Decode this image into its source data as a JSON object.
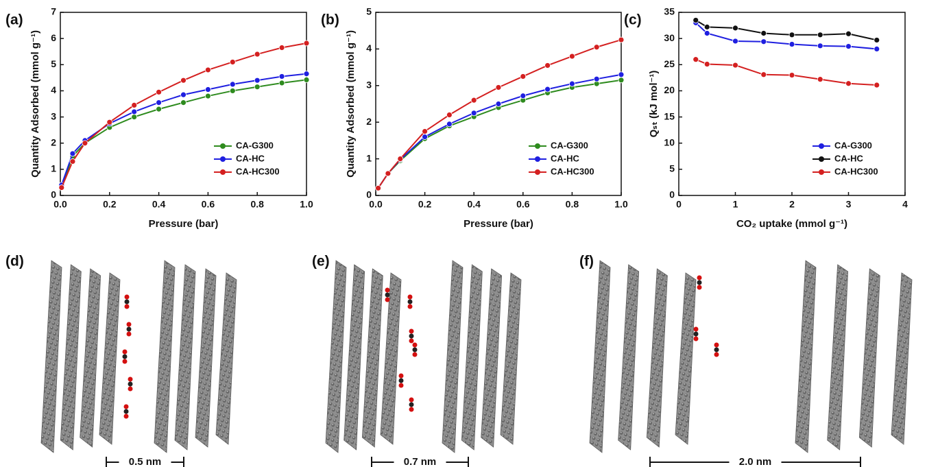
{
  "chart_data": [
    {
      "type": "line",
      "panel_label": "(a)",
      "x_label": "Pressure (bar)",
      "y_label": "Quantity Adsorbed (mmol g⁻¹)",
      "x": [
        0.005,
        0.05,
        0.1,
        0.2,
        0.3,
        0.4,
        0.5,
        0.6,
        0.7,
        0.8,
        0.9,
        1.0
      ],
      "xlim": [
        0,
        1
      ],
      "xticks": [
        {
          "value": 0,
          "label": "0.0"
        },
        0.2,
        0.4,
        0.6,
        0.8,
        {
          "value": 1,
          "label": "1.0"
        }
      ],
      "ylim": [
        0,
        7
      ],
      "yticks": [
        0,
        1,
        2,
        3,
        4,
        5,
        6,
        7
      ],
      "legend": "lower right",
      "series": [
        {
          "name": "CA-G300",
          "color": "#2e8b1e",
          "values": [
            0.3,
            1.5,
            2.0,
            2.6,
            3.0,
            3.3,
            3.55,
            3.8,
            4.0,
            4.15,
            4.3,
            4.42
          ]
        },
        {
          "name": "CA-HC",
          "color": "#1f1fe0",
          "values": [
            0.4,
            1.6,
            2.1,
            2.75,
            3.2,
            3.55,
            3.85,
            4.05,
            4.25,
            4.4,
            4.55,
            4.65
          ]
        },
        {
          "name": "CA-HC300",
          "color": "#d42020",
          "values": [
            0.3,
            1.3,
            2.0,
            2.8,
            3.45,
            3.95,
            4.4,
            4.8,
            5.1,
            5.4,
            5.65,
            5.82
          ]
        }
      ]
    },
    {
      "type": "line",
      "panel_label": "(b)",
      "x_label": "Pressure (bar)",
      "y_label": "Quantity Adsorbed (mmol g⁻¹)",
      "x": [
        0.01,
        0.05,
        0.1,
        0.2,
        0.3,
        0.4,
        0.5,
        0.6,
        0.7,
        0.8,
        0.9,
        1.0
      ],
      "xlim": [
        0,
        1
      ],
      "xticks": [
        {
          "value": 0,
          "label": "0.0"
        },
        0.2,
        0.4,
        0.6,
        0.8,
        {
          "value": 1,
          "label": "1.0"
        }
      ],
      "ylim": [
        0,
        5
      ],
      "yticks": [
        0,
        1,
        2,
        3,
        4,
        5
      ],
      "legend": "lower right",
      "series": [
        {
          "name": "CA-G300",
          "color": "#2e8b1e",
          "values": [
            0.2,
            0.6,
            0.95,
            1.55,
            1.9,
            2.15,
            2.4,
            2.6,
            2.8,
            2.95,
            3.05,
            3.15
          ]
        },
        {
          "name": "CA-HC",
          "color": "#1f1fe0",
          "values": [
            0.2,
            0.6,
            0.98,
            1.6,
            1.95,
            2.25,
            2.5,
            2.72,
            2.9,
            3.05,
            3.18,
            3.3
          ]
        },
        {
          "name": "CA-HC300",
          "color": "#d42020",
          "values": [
            0.2,
            0.6,
            1.0,
            1.75,
            2.2,
            2.6,
            2.95,
            3.25,
            3.55,
            3.8,
            4.05,
            4.25
          ]
        }
      ]
    },
    {
      "type": "line",
      "panel_label": "(c)",
      "x_label": "CO₂ uptake (mmol g⁻¹)",
      "y_label": "Qₛₜ (kJ mol⁻¹)",
      "x": [
        0.3,
        0.5,
        1,
        1.5,
        2,
        2.5,
        3,
        3.5
      ],
      "xlim": [
        0,
        4
      ],
      "xticks": [
        0,
        1,
        2,
        3,
        4
      ],
      "ylim": [
        0,
        35
      ],
      "yticks": [
        0,
        5,
        10,
        15,
        20,
        25,
        30,
        35
      ],
      "legend": "lower right",
      "series": [
        {
          "name": "CA-G300",
          "color": "#1f1fe0",
          "values": [
            33,
            31,
            29.5,
            29.4,
            28.9,
            28.6,
            28.5,
            28.0
          ]
        },
        {
          "name": "CA-HC",
          "color": "#111111",
          "values": [
            33.5,
            32.2,
            32,
            31,
            30.7,
            30.7,
            30.9,
            29.7
          ]
        },
        {
          "name": "CA-HC300",
          "color": "#d42020",
          "values": [
            26,
            25.1,
            24.9,
            23.1,
            23,
            22.2,
            21.4,
            21.1
          ]
        }
      ]
    }
  ],
  "structures": [
    {
      "panel_label": "(d)",
      "spacing": "0.5 nm"
    },
    {
      "panel_label": "(e)",
      "spacing": "0.7 nm"
    },
    {
      "panel_label": "(f)",
      "spacing": "2.0 nm"
    }
  ]
}
